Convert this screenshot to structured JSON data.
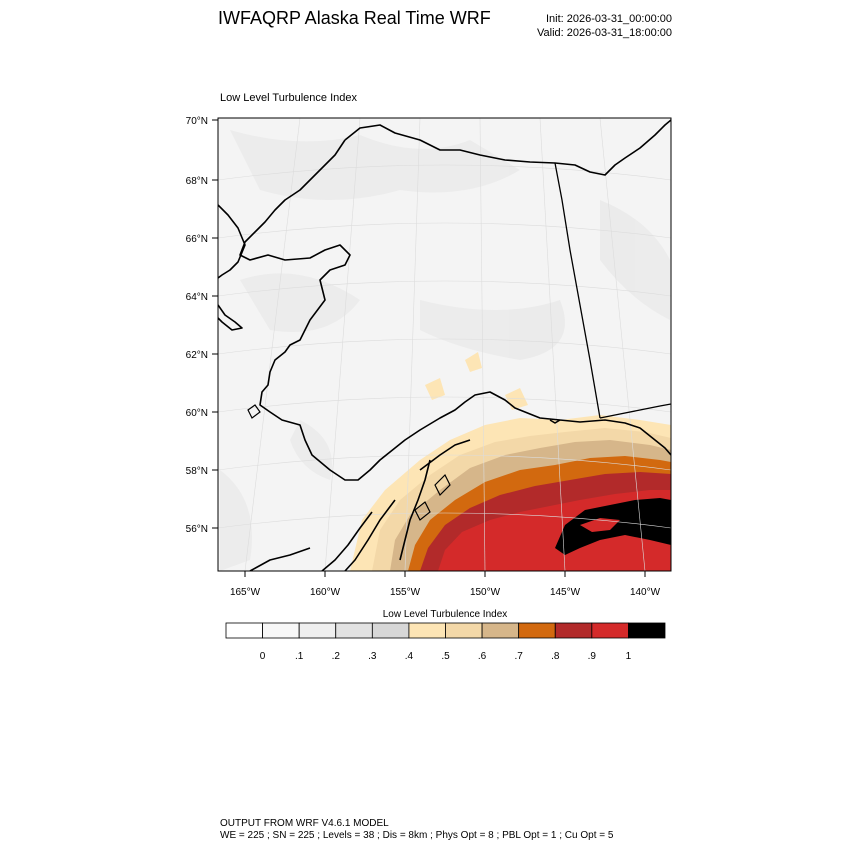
{
  "header": {
    "title": "IWFAQRP Alaska Real Time WRF",
    "init": "Init: 2026-03-31_00:00:00",
    "valid": "Valid: 2026-03-31_18:00:00"
  },
  "map": {
    "panel_title": "Low Level Turbulence Index",
    "lat_labels": [
      "70°N",
      "68°N",
      "66°N",
      "64°N",
      "62°N",
      "60°N",
      "58°N",
      "56°N"
    ],
    "lon_labels": [
      "165°W",
      "160°W",
      "155°W",
      "150°W",
      "145°W",
      "140°W"
    ],
    "land_color": "#f3f3f3",
    "coast_color": "#000000"
  },
  "colorbar": {
    "title": "Low Level Turbulence Index",
    "labels": [
      "0",
      ".1",
      ".2",
      ".3",
      ".4",
      ".5",
      ".6",
      ".7",
      ".8",
      ".9",
      "1"
    ],
    "colors": [
      "#ffffff",
      "#f7f7f7",
      "#efefef",
      "#e2e2e2",
      "#d7d7d7",
      "#fde5b5",
      "#f3d8a8",
      "#d6b68a",
      "#d2690f",
      "#b22a2a",
      "#d42a2a",
      "#000000"
    ]
  },
  "footer": {
    "line1": "OUTPUT FROM WRF V4.6.1 MODEL",
    "line2": "WE = 225 ; SN = 225 ; Levels = 38 ; Dis = 8km ; Phys Opt = 8 ; PBL Opt = 1 ; Cu Opt = 5"
  }
}
